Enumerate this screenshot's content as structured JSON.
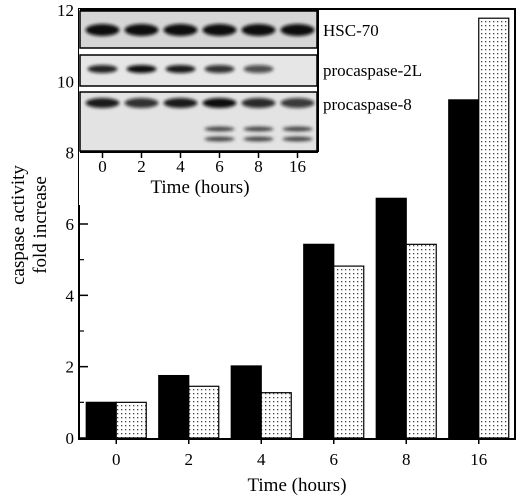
{
  "chart_data": {
    "type": "bar",
    "categories": [
      "0",
      "2",
      "4",
      "6",
      "8",
      "16"
    ],
    "series": [
      {
        "values": [
          1.0,
          1.75,
          2.02,
          5.43,
          6.72,
          9.48
        ],
        "color": "#000000",
        "pattern": "solid"
      },
      {
        "values": [
          1.0,
          1.45,
          1.27,
          4.82,
          5.43,
          11.77
        ],
        "color": "#ffffff",
        "pattern": "dotted"
      }
    ],
    "xlabel": "Time (hours)",
    "ylabel": [
      "caspase activity",
      "fold increase"
    ],
    "ylim": [
      0,
      12
    ],
    "yticks": [
      0,
      2,
      4,
      6,
      8,
      10,
      12
    ],
    "grid": false,
    "inset": {
      "rows": [
        "HSC-70",
        "procaspase-2L",
        "procaspase-8"
      ],
      "lanes": [
        "0",
        "2",
        "4",
        "6",
        "8",
        "16"
      ],
      "xlabel": "Time (hours)",
      "band_intensity": {
        "HSC-70": [
          1.0,
          1.0,
          1.0,
          1.0,
          1.0,
          1.0
        ],
        "procaspase-2L": [
          0.85,
          1.0,
          0.9,
          0.75,
          0.55,
          0.0
        ],
        "procaspase-8": [
          0.9,
          0.75,
          0.9,
          1.0,
          0.8,
          0.7
        ]
      },
      "cleavage_bands_present": [
        false,
        false,
        false,
        true,
        true,
        true
      ]
    }
  }
}
